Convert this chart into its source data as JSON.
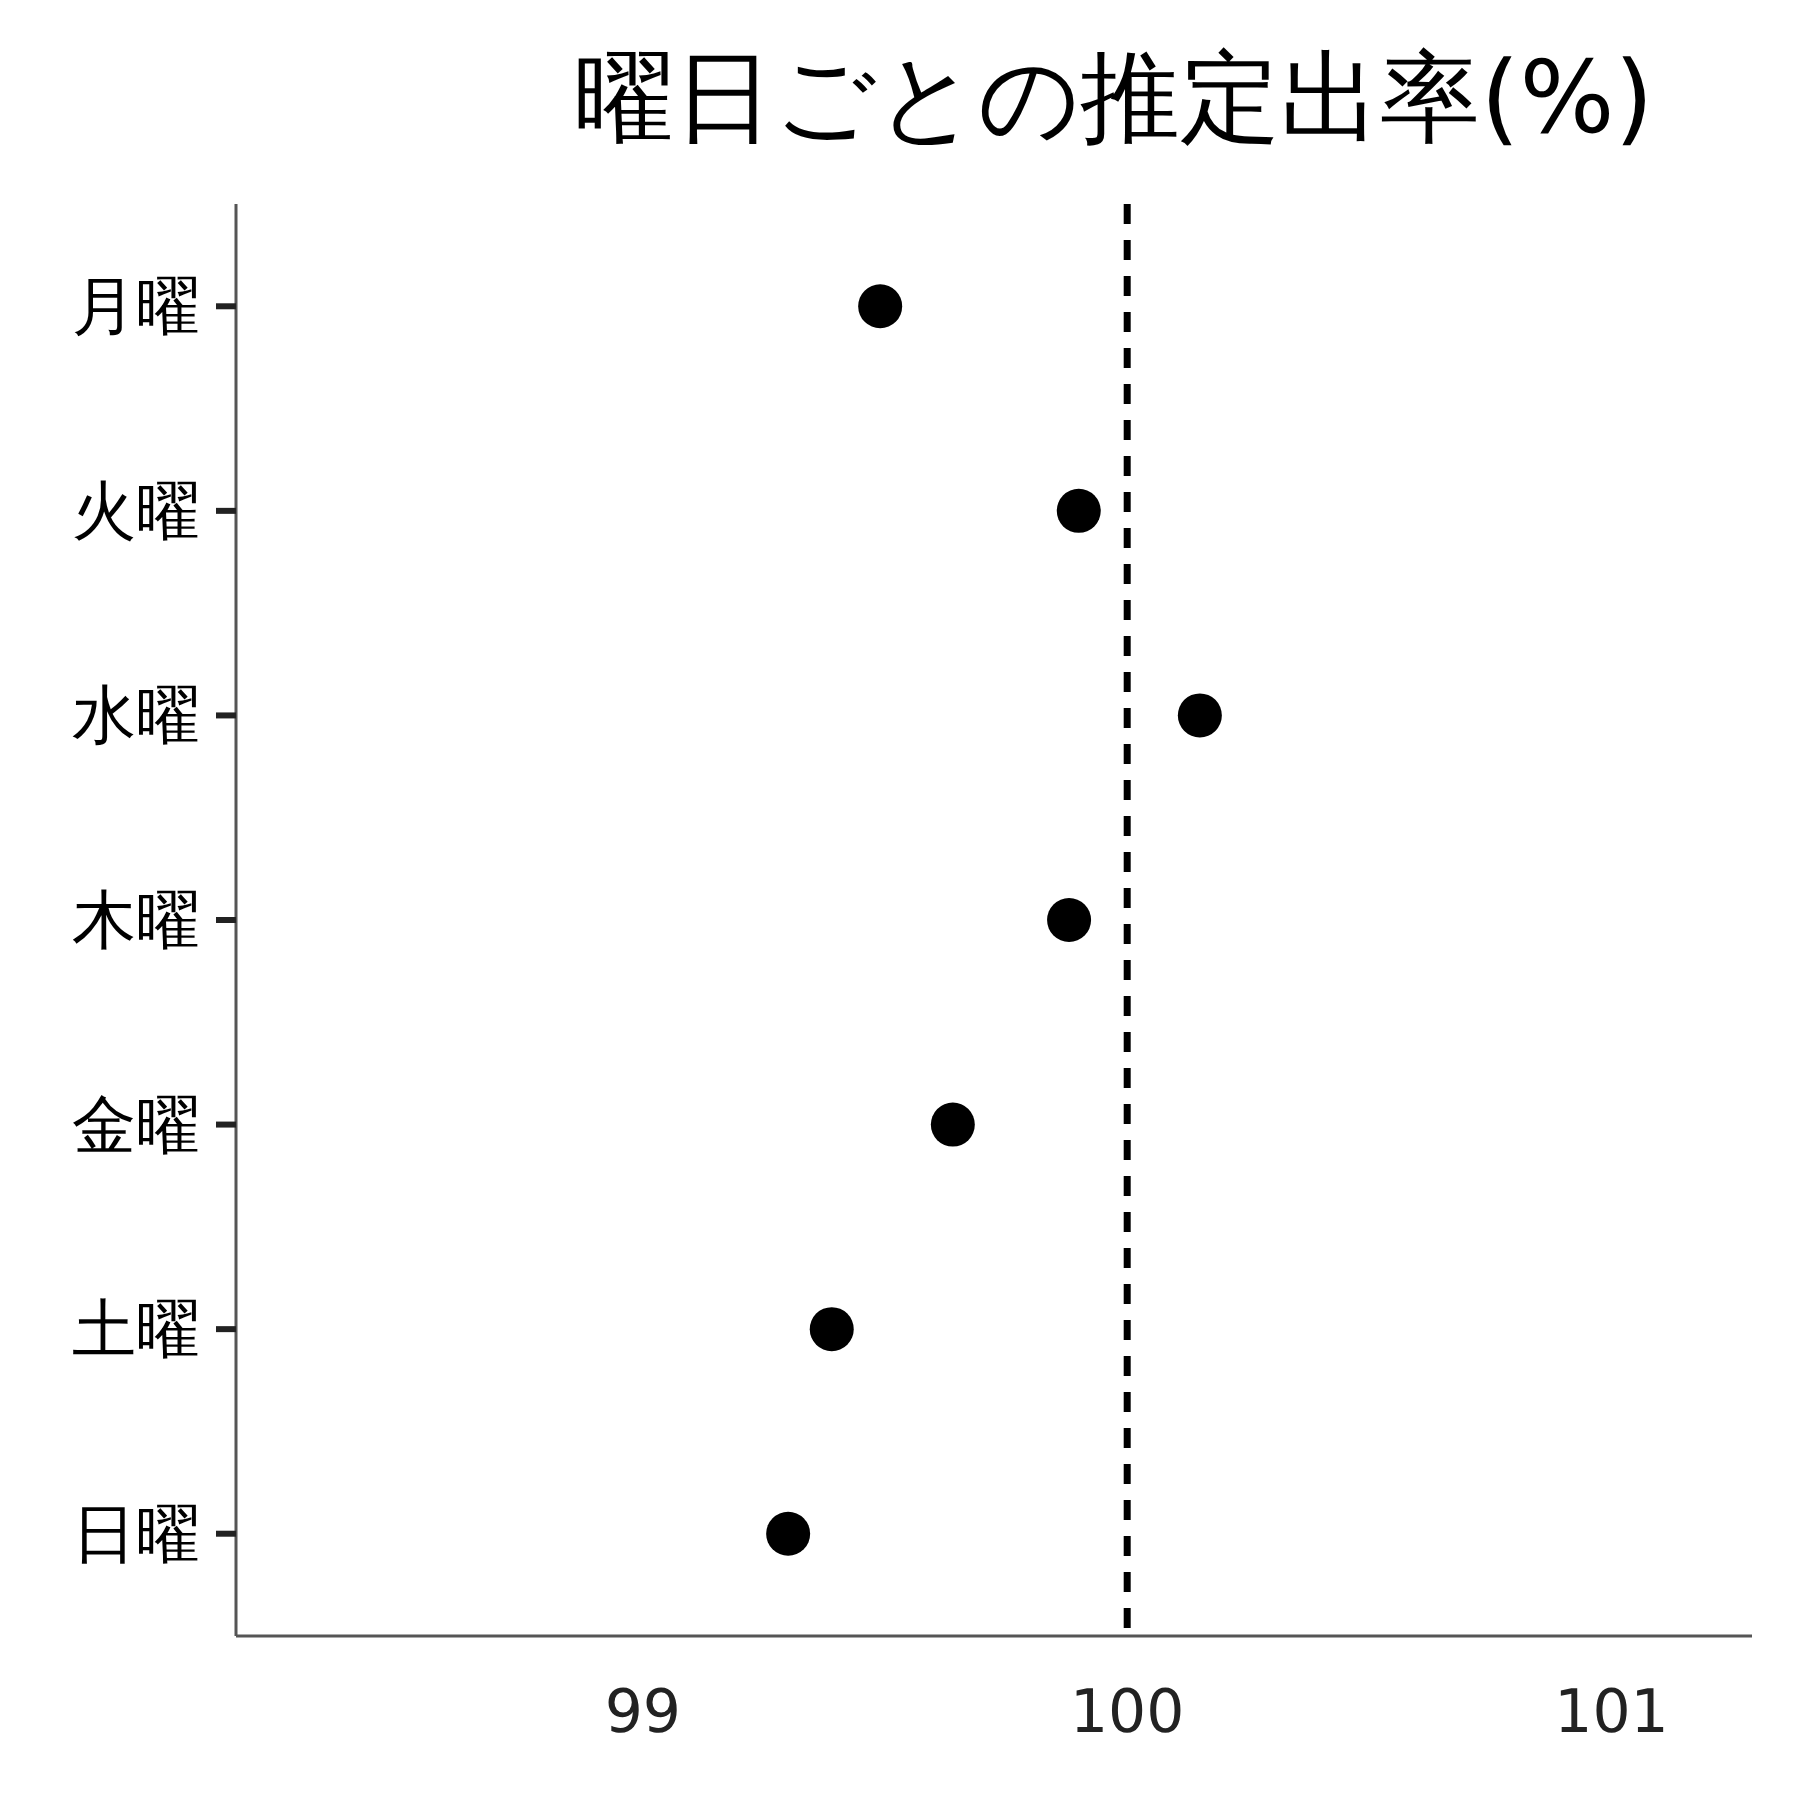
{
  "chart_data": {
    "type": "scatter",
    "orientation": "horizontal",
    "title": "曜日ごとの推定出率(%)",
    "categories": [
      "月曜",
      "火曜",
      "水曜",
      "木曜",
      "金曜",
      "土曜",
      "日曜"
    ],
    "values": [
      99.49,
      99.9,
      100.15,
      99.88,
      99.64,
      99.39,
      99.3
    ],
    "color": "#000000",
    "marker": "circle",
    "xlim": [
      98.16,
      101.29
    ],
    "xticks": [
      99,
      100,
      101
    ],
    "ref_lines": [
      {
        "axis": "x",
        "value": 100,
        "color": "#000000",
        "line_style": "dashed"
      }
    ]
  }
}
